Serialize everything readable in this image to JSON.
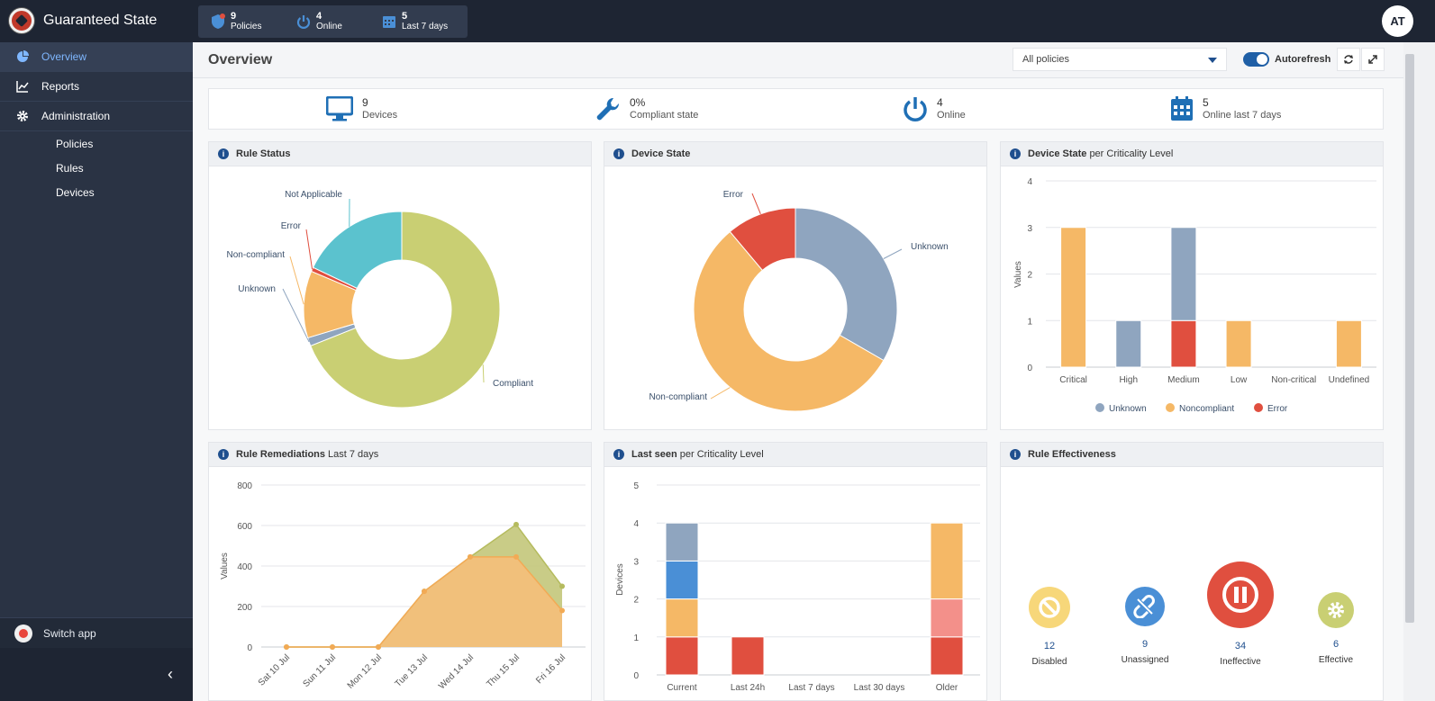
{
  "app": {
    "title": "Guaranteed State",
    "avatar": "AT"
  },
  "topstats": [
    {
      "value": "9",
      "label": "Policies",
      "icon": "shield-icon"
    },
    {
      "value": "4",
      "label": "Online",
      "icon": "power-icon"
    },
    {
      "value": "5",
      "label": "Last 7 days",
      "icon": "calendar-icon"
    }
  ],
  "sidebar": {
    "items": [
      {
        "label": "Overview",
        "icon": "pie-chart-icon",
        "active": true
      },
      {
        "label": "Reports",
        "icon": "line-chart-icon"
      },
      {
        "label": "Administration",
        "icon": "gear-icon"
      }
    ],
    "sub": [
      "Policies",
      "Rules",
      "Devices"
    ],
    "switch_app": "Switch app",
    "collapse": "‹"
  },
  "header": {
    "title": "Overview",
    "policy_select": "All policies",
    "autorefresh": "Autorefresh"
  },
  "summary": [
    {
      "value": "9",
      "label": "Devices",
      "icon": "monitor-icon"
    },
    {
      "value": "0%",
      "label": "Compliant state",
      "icon": "wrench-icon"
    },
    {
      "value": "4",
      "label": "Online",
      "icon": "power-icon"
    },
    {
      "value": "5",
      "label": "Online last 7 days",
      "icon": "calendar-icon"
    }
  ],
  "panels": {
    "rule_status": {
      "title": "Rule Status",
      "subtitle": ""
    },
    "device_state": {
      "title": "Device State",
      "subtitle": ""
    },
    "criticality": {
      "title": "Device State",
      "subtitle": "per Criticality Level"
    },
    "remediations": {
      "title": "Rule Remediations",
      "subtitle": "Last 7 days"
    },
    "last_seen": {
      "title": "Last seen",
      "subtitle": "per Criticality Level"
    },
    "effectiveness": {
      "title": "Rule Effectiveness",
      "subtitle": ""
    }
  },
  "colors": {
    "compliant": "#c9cf73",
    "unknown": "#8fa5bf",
    "noncompliant": "#f5b866",
    "error": "#e04f3f",
    "not_applicable": "#5bc2ce",
    "blue": "#4a8fd6",
    "salmon": "#f3908a"
  },
  "chart_data": [
    {
      "type": "pie",
      "title": "Rule Status",
      "labels": [
        "Compliant",
        "Unknown",
        "Non-compliant",
        "Error",
        "Not Applicable"
      ],
      "values": [
        50,
        1,
        8,
        0.5,
        13
      ]
    },
    {
      "type": "pie",
      "title": "Device State",
      "labels": [
        "Unknown",
        "Non-compliant",
        "Error"
      ],
      "values": [
        3,
        5,
        1
      ]
    },
    {
      "type": "bar",
      "title": "Device State per Criticality Level",
      "categories": [
        "Critical",
        "High",
        "Medium",
        "Low",
        "Non-critical",
        "Undefined"
      ],
      "series": [
        {
          "name": "Unknown",
          "values": [
            0,
            1,
            2,
            0,
            0,
            0
          ]
        },
        {
          "name": "Noncompliant",
          "values": [
            3,
            0,
            0,
            1,
            0,
            1
          ]
        },
        {
          "name": "Error",
          "values": [
            0,
            0,
            1,
            0,
            0,
            0
          ]
        }
      ],
      "ylabel": "Values",
      "ylim": [
        0,
        4
      ],
      "yticks": [
        "0",
        "1",
        "2",
        "3",
        "4"
      ],
      "legend": "bottom"
    },
    {
      "type": "area",
      "title": "Rule Remediations Last 7 days",
      "categories": [
        "Sat 10 Jul",
        "Sun 11 Jul",
        "Mon 12 Jul",
        "Tue 13 Jul",
        "Wed 14 Jul",
        "Thu 15 Jul",
        "Fri 16 Jul"
      ],
      "series": [
        {
          "name": "",
          "values": [
            0,
            0,
            0,
            275,
            445,
            605,
            300
          ]
        },
        {
          "name": "",
          "values": [
            0,
            0,
            0,
            275,
            445,
            445,
            180
          ]
        }
      ],
      "ylabel": "Values",
      "ylim": [
        0,
        800
      ],
      "yticks": [
        "0",
        "200",
        "400",
        "600",
        "800"
      ]
    },
    {
      "type": "bar",
      "title": "Last seen per Criticality Level",
      "categories": [
        "Current",
        "Last 24h",
        "Last 7 days",
        "Last 30 days",
        "Older"
      ],
      "series": [
        {
          "name": "",
          "values": [
            1,
            1,
            0,
            0,
            1
          ]
        },
        {
          "name": "",
          "values": [
            1,
            0,
            0,
            0,
            0
          ]
        },
        {
          "name": "",
          "values": [
            0,
            0,
            0,
            0,
            1
          ]
        },
        {
          "name": "",
          "values": [
            1,
            0,
            0,
            0,
            0
          ]
        },
        {
          "name": "",
          "values": [
            1,
            0,
            0,
            0,
            0
          ]
        },
        {
          "name": "",
          "values": [
            0,
            0,
            0,
            0,
            2
          ]
        }
      ],
      "ylabel": "Devices",
      "ylim": [
        0,
        5
      ],
      "yticks": [
        "0",
        "1",
        "2",
        "3",
        "4",
        "5"
      ]
    }
  ],
  "effectiveness": [
    {
      "value": "12",
      "label": "Disabled",
      "icon": "disabled-icon",
      "color": "#f7d77a"
    },
    {
      "value": "9",
      "label": "Unassigned",
      "icon": "unlink-icon",
      "color": "#4a8fd6"
    },
    {
      "value": "34",
      "label": "Ineffective",
      "icon": "pause-icon",
      "color": "#e04f3f"
    },
    {
      "value": "6",
      "label": "Effective",
      "icon": "gear-icon",
      "color": "#c9cf73"
    }
  ]
}
